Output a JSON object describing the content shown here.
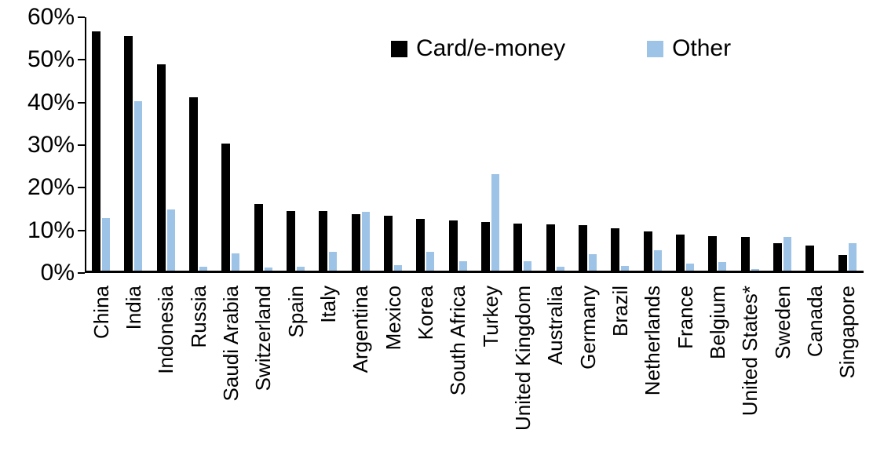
{
  "chart_data": {
    "type": "bar",
    "title": "",
    "xlabel": "",
    "ylabel": "",
    "ylim": [
      0,
      60
    ],
    "ytick_step": 10,
    "ytick_labels": [
      "0%",
      "10%",
      "20%",
      "30%",
      "40%",
      "50%",
      "60%"
    ],
    "grid": false,
    "legend_position": "top-center",
    "categories": [
      "China",
      "India",
      "Indonesia",
      "Russia",
      "Saudi Arabia",
      "Switzerland",
      "Spain",
      "Italy",
      "Argentina",
      "Mexico",
      "Korea",
      "South Africa",
      "Turkey",
      "United Kingdom",
      "Australia",
      "Germany",
      "Brazil",
      "Netherlands",
      "France",
      "Belgium",
      "United States*",
      "Sweden",
      "Canada",
      "Singapore"
    ],
    "series": [
      {
        "name": "Card/e-money",
        "color": "#000000",
        "values": [
          56.2,
          55.1,
          48.4,
          40.6,
          29.8,
          15.6,
          14.0,
          13.9,
          13.3,
          12.9,
          12.2,
          11.7,
          11.5,
          11.0,
          10.8,
          10.6,
          10.0,
          9.2,
          8.5,
          8.1,
          7.9,
          6.5,
          5.9,
          3.7
        ]
      },
      {
        "name": "Other",
        "color": "#9DC3E6",
        "values": [
          12.3,
          39.7,
          14.4,
          1.0,
          4.0,
          0.8,
          1.0,
          4.5,
          13.8,
          1.3,
          4.5,
          2.3,
          22.6,
          2.3,
          1.0,
          3.9,
          1.1,
          4.7,
          1.6,
          2.0,
          0.4,
          7.9,
          0.0,
          6.5
        ]
      }
    ]
  }
}
